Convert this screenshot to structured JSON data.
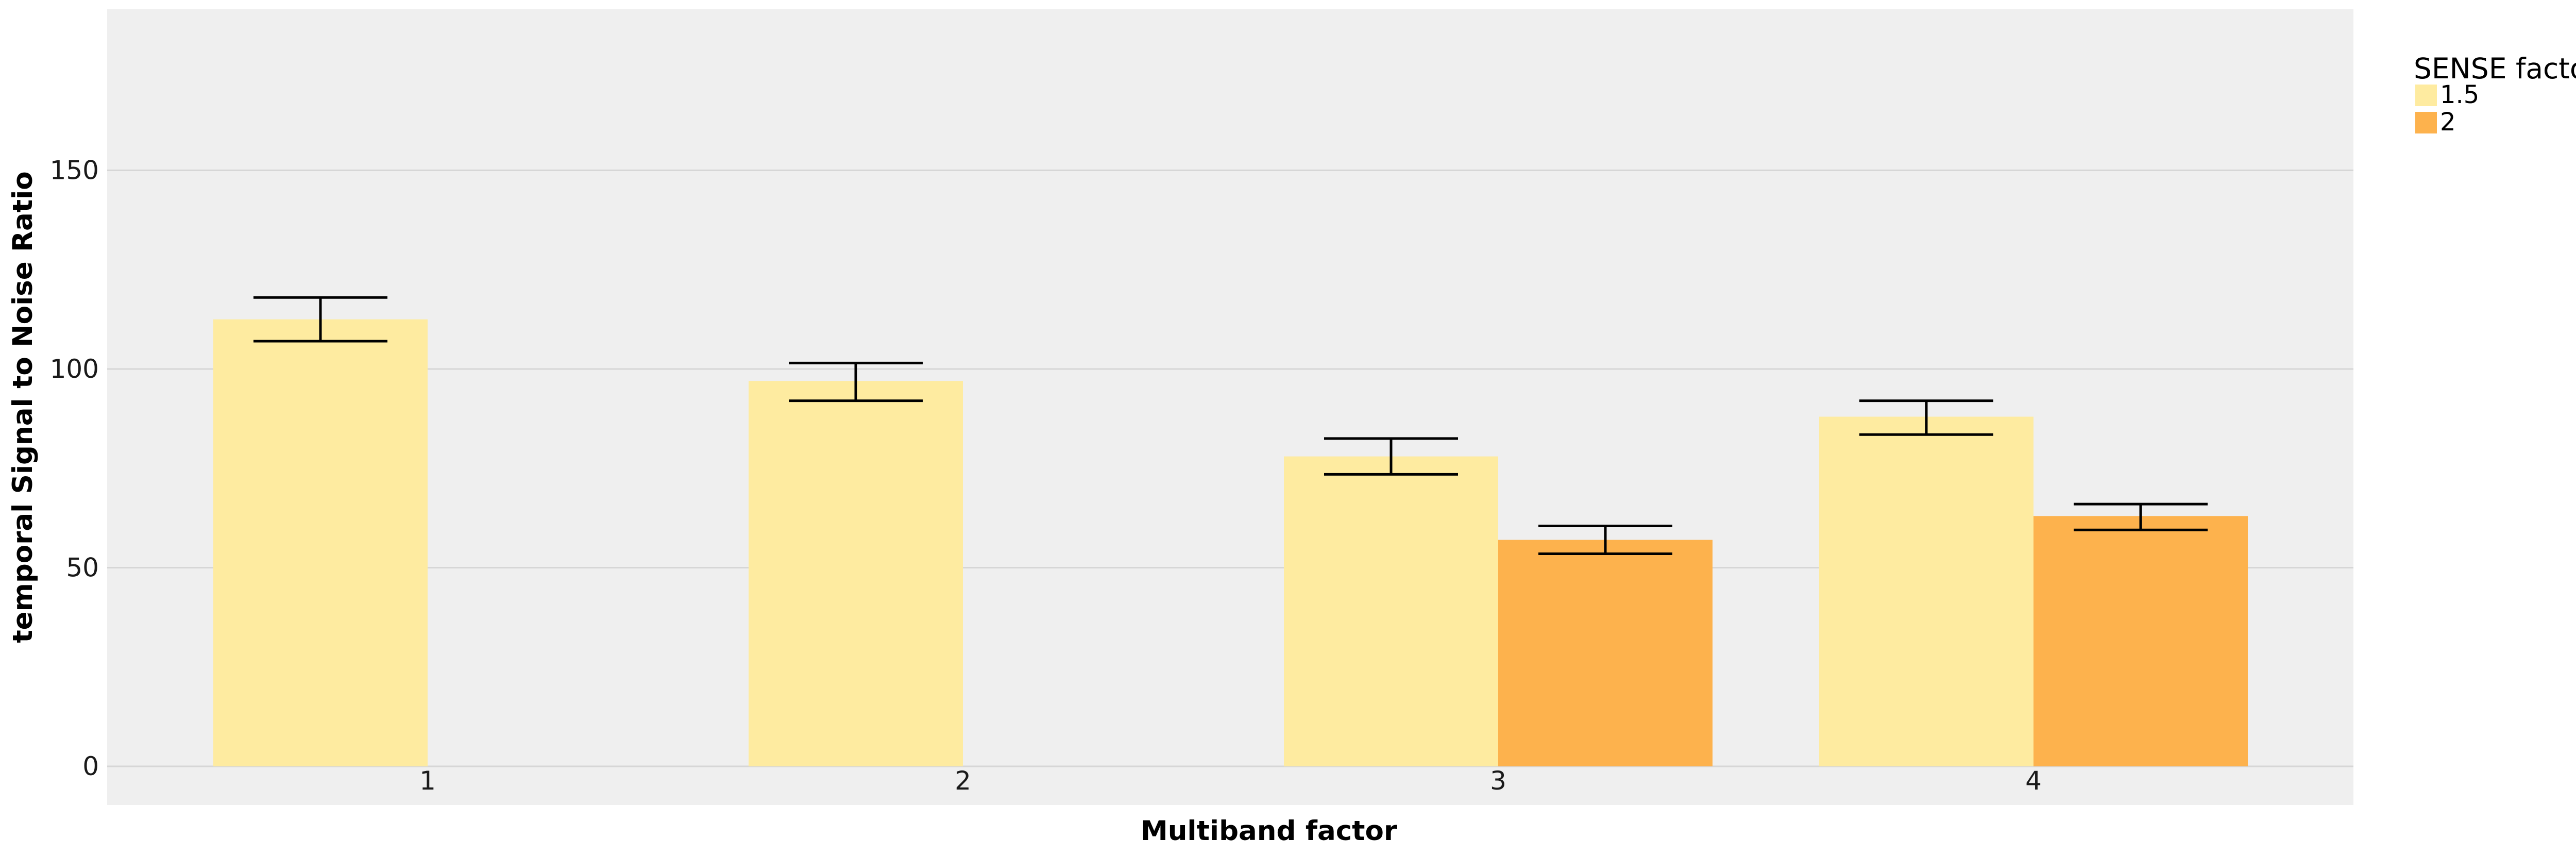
{
  "chart_data": {
    "type": "bar",
    "xlabel": "Multiband factor",
    "ylabel": "temporal Signal to Noise Ratio",
    "categories": [
      "1",
      "2",
      "3",
      "4"
    ],
    "ylim": [
      0,
      187
    ],
    "yticks": [
      0,
      50,
      100,
      150
    ],
    "grid": true,
    "legend": {
      "title": "SENSE factor",
      "position": "right",
      "entries": [
        "1.5",
        "2"
      ]
    },
    "series": [
      {
        "name": "1.5",
        "color": "#FEEBA0",
        "values": [
          112.5,
          97,
          78,
          88
        ],
        "errors": [
          [
            107,
            118
          ],
          [
            92,
            101.5
          ],
          [
            73.5,
            82.5
          ],
          [
            83.5,
            92
          ]
        ]
      },
      {
        "name": "2",
        "color": "#FDB24D",
        "values": [
          null,
          null,
          57,
          63
        ],
        "errors": [
          null,
          null,
          [
            53.5,
            60.5
          ],
          [
            59.5,
            66
          ]
        ]
      }
    ],
    "colors": {
      "panel_background": "#EFEFEF",
      "grid": "#D6D6D6",
      "error_bar": "#000000"
    }
  }
}
